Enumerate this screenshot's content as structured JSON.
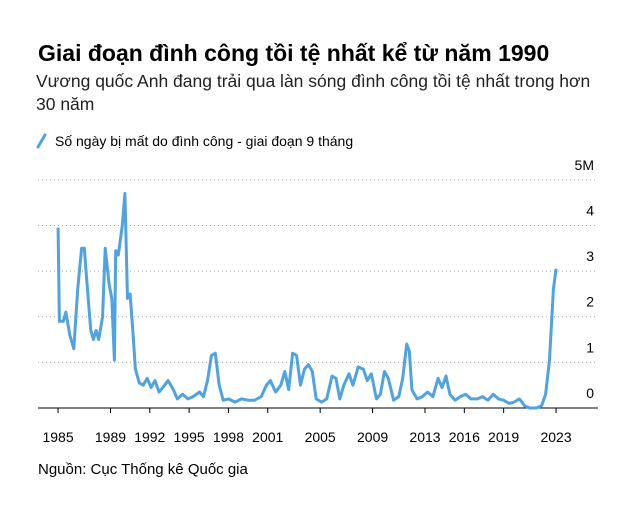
{
  "chart_data": {
    "type": "line",
    "title": "Giai đoạn đình công tồi tệ nhất kể từ năm 1990",
    "subtitle": "Vương quốc Anh đang trải qua làn sóng đình công tồi tệ nhất trong hơn 30 năm",
    "source": "Nguồn: Cục Thống kê Quốc gia",
    "x": [
      1985.0,
      1985.1,
      1985.4,
      1985.6,
      1985.9,
      1986.2,
      1986.5,
      1986.8,
      1987.0,
      1987.3,
      1987.5,
      1987.7,
      1987.9,
      1988.1,
      1988.4,
      1988.6,
      1988.9,
      1989.1,
      1989.3,
      1989.4,
      1989.6,
      1989.9,
      1990.1,
      1990.3,
      1990.5,
      1990.7,
      1990.9,
      1991.2,
      1991.5,
      1991.8,
      1992.1,
      1992.4,
      1992.7,
      1993.0,
      1993.4,
      1993.8,
      1994.1,
      1994.5,
      1994.9,
      1995.3,
      1995.8,
      1996.1,
      1996.4,
      1996.7,
      1997.0,
      1997.3,
      1997.6,
      1998.0,
      1998.5,
      1999.0,
      1999.5,
      2000.0,
      2000.5,
      2000.9,
      2001.2,
      2001.6,
      2002.0,
      2002.3,
      2002.6,
      2002.9,
      2003.2,
      2003.5,
      2003.8,
      2004.1,
      2004.4,
      2004.7,
      2005.1,
      2005.5,
      2005.9,
      2006.2,
      2006.5,
      2006.8,
      2007.2,
      2007.5,
      2007.9,
      2008.3,
      2008.6,
      2008.9,
      2009.3,
      2009.6,
      2009.9,
      2010.2,
      2010.6,
      2011.0,
      2011.3,
      2011.6,
      2011.8,
      2012.0,
      2012.4,
      2012.8,
      2013.2,
      2013.6,
      2014.0,
      2014.3,
      2014.6,
      2014.9,
      2015.3,
      2015.7,
      2016.1,
      2016.5,
      2017.0,
      2017.4,
      2017.8,
      2018.2,
      2018.6,
      2019.0,
      2019.4,
      2019.8,
      2020.2,
      2020.6,
      2021.0,
      2021.5,
      2021.9,
      2022.2,
      2022.5,
      2022.8,
      2023.0
    ],
    "series": [
      {
        "name": "Số ngày bị mất do đình công - giai đoạn 9 tháng",
        "color": "#4ea3e6",
        "values": [
          3.95,
          1.9,
          1.9,
          2.1,
          1.6,
          1.3,
          2.6,
          3.5,
          3.5,
          2.4,
          1.7,
          1.5,
          1.7,
          1.5,
          2.0,
          3.5,
          2.7,
          2.4,
          1.05,
          3.45,
          3.35,
          4.0,
          4.7,
          2.4,
          2.5,
          1.7,
          0.85,
          0.55,
          0.5,
          0.65,
          0.45,
          0.6,
          0.35,
          0.45,
          0.6,
          0.4,
          0.2,
          0.3,
          0.2,
          0.25,
          0.35,
          0.25,
          0.6,
          1.15,
          1.2,
          0.5,
          0.17,
          0.2,
          0.13,
          0.2,
          0.17,
          0.17,
          0.25,
          0.5,
          0.6,
          0.35,
          0.5,
          0.8,
          0.4,
          1.2,
          1.15,
          0.5,
          0.85,
          0.95,
          0.8,
          0.2,
          0.13,
          0.2,
          0.7,
          0.65,
          0.2,
          0.5,
          0.75,
          0.5,
          0.9,
          0.85,
          0.6,
          0.75,
          0.2,
          0.3,
          0.8,
          0.65,
          0.17,
          0.25,
          0.65,
          1.4,
          1.25,
          0.4,
          0.2,
          0.25,
          0.35,
          0.25,
          0.65,
          0.45,
          0.7,
          0.3,
          0.17,
          0.25,
          0.3,
          0.2,
          0.2,
          0.25,
          0.17,
          0.3,
          0.2,
          0.17,
          0.1,
          0.13,
          0.2,
          0.05,
          0,
          0,
          0.05,
          0.3,
          1.05,
          2.6,
          3.05
        ]
      }
    ],
    "xlim": [
      1983.47,
      2026.2
    ],
    "xticks": [
      1985,
      1989,
      1992,
      1995,
      1998,
      2001,
      2005,
      2009,
      2013,
      2016,
      2019,
      2023
    ],
    "ylim": [
      0,
      5.5
    ],
    "yticks": [
      0,
      1,
      2,
      3,
      4,
      {
        "value": 5,
        "label": "5M"
      }
    ],
    "grid": true
  }
}
